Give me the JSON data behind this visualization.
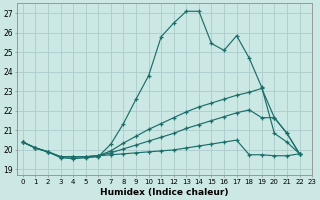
{
  "xlabel": "Humidex (Indice chaleur)",
  "background_color": "#cce8e4",
  "grid_color": "#aaccca",
  "line_color": "#1a6e6a",
  "xlim": [
    -0.5,
    23
  ],
  "ylim": [
    18.7,
    27.5
  ],
  "yticks": [
    19,
    20,
    21,
    22,
    23,
    24,
    25,
    26,
    27
  ],
  "xticks": [
    0,
    1,
    2,
    3,
    4,
    5,
    6,
    7,
    8,
    9,
    10,
    11,
    12,
    13,
    14,
    15,
    16,
    17,
    18,
    19,
    20,
    21,
    22,
    23
  ],
  "series": [
    {
      "x": [
        0,
        1,
        2,
        3,
        4,
        5,
        6,
        7,
        8,
        9,
        10,
        11,
        12,
        13,
        14,
        15,
        16,
        17,
        18,
        19,
        20,
        21,
        22
      ],
      "y": [
        20.4,
        20.1,
        19.9,
        19.6,
        19.55,
        19.6,
        19.65,
        20.3,
        21.35,
        22.6,
        23.8,
        25.8,
        26.5,
        27.1,
        27.1,
        25.45,
        25.1,
        25.85,
        24.7,
        23.2,
        20.85,
        20.4,
        19.8
      ]
    },
    {
      "x": [
        0,
        1,
        2,
        3,
        4,
        5,
        6,
        7,
        8,
        9,
        10,
        11,
        12,
        13,
        14,
        15,
        16,
        17,
        18,
        19,
        20,
        21,
        22
      ],
      "y": [
        20.4,
        20.1,
        19.9,
        19.65,
        19.65,
        19.65,
        19.7,
        19.95,
        20.35,
        20.7,
        21.05,
        21.35,
        21.65,
        21.95,
        22.2,
        22.4,
        22.6,
        22.8,
        22.95,
        23.15,
        21.65,
        20.85,
        19.8
      ]
    },
    {
      "x": [
        0,
        1,
        2,
        3,
        4,
        5,
        6,
        7,
        8,
        9,
        10,
        11,
        12,
        13,
        14,
        15,
        16,
        17,
        18,
        19,
        20,
        21,
        22
      ],
      "y": [
        20.4,
        20.1,
        19.9,
        19.65,
        19.65,
        19.65,
        19.7,
        19.85,
        20.05,
        20.25,
        20.45,
        20.65,
        20.85,
        21.1,
        21.3,
        21.5,
        21.7,
        21.9,
        22.05,
        21.65,
        21.65,
        20.85,
        19.8
      ]
    },
    {
      "x": [
        0,
        1,
        2,
        3,
        4,
        5,
        6,
        7,
        8,
        9,
        10,
        11,
        12,
        13,
        14,
        15,
        16,
        17,
        18,
        19,
        20,
        21,
        22
      ],
      "y": [
        20.4,
        20.1,
        19.9,
        19.65,
        19.65,
        19.65,
        19.7,
        19.75,
        19.8,
        19.85,
        19.9,
        19.95,
        20.0,
        20.1,
        20.2,
        20.3,
        20.4,
        20.5,
        19.75,
        19.75,
        19.7,
        19.7,
        19.8
      ]
    }
  ]
}
